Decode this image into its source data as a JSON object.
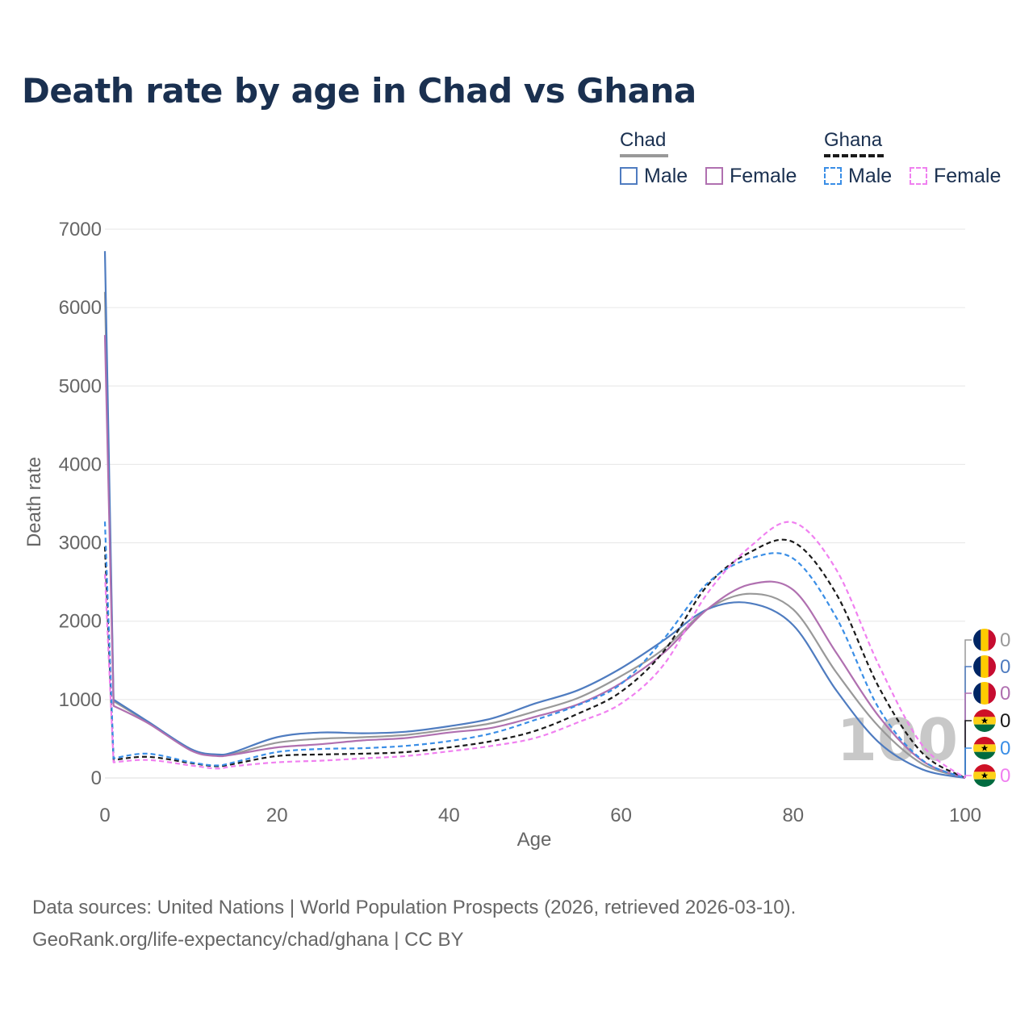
{
  "title": "Death rate by age in Chad vs Ghana",
  "legend": {
    "groups": [
      {
        "title": "Chad",
        "line_style": "solid",
        "line_color": "#999999",
        "items": [
          {
            "label": "Male",
            "color": "#4f7cc0",
            "style": "solid"
          },
          {
            "label": "Female",
            "color": "#b070b0",
            "style": "solid"
          }
        ]
      },
      {
        "title": "Ghana",
        "line_style": "dashed",
        "line_color": "#1a1a1a",
        "items": [
          {
            "label": "Male",
            "color": "#3a8ee6",
            "style": "dashed"
          },
          {
            "label": "Female",
            "color": "#f080f0",
            "style": "dashed"
          }
        ]
      }
    ]
  },
  "chart_data": {
    "type": "line",
    "title": "Death rate by age in Chad vs Ghana",
    "xlabel": "Age",
    "ylabel": "Death rate",
    "xlim": [
      0,
      100
    ],
    "ylim": [
      0,
      7000
    ],
    "xticks": [
      0,
      20,
      40,
      60,
      80,
      100
    ],
    "yticks": [
      0,
      1000,
      2000,
      3000,
      4000,
      5000,
      6000,
      7000
    ],
    "grid": true,
    "watermark": "100",
    "x": [
      0,
      1,
      5,
      10,
      13,
      15,
      20,
      25,
      30,
      35,
      40,
      45,
      50,
      55,
      60,
      65,
      70,
      75,
      80,
      85,
      90,
      95,
      100
    ],
    "series": [
      {
        "name": "Chad total",
        "color": "#999999",
        "dash": "solid",
        "end_value": "0",
        "values": [
          6200,
          980,
          710,
          360,
          290,
          310,
          450,
          500,
          520,
          550,
          620,
          700,
          850,
          1020,
          1300,
          1650,
          2150,
          2350,
          2150,
          1350,
          650,
          180,
          0
        ]
      },
      {
        "name": "Chad Male",
        "color": "#4f7cc0",
        "dash": "solid",
        "end_value": "0",
        "values": [
          6720,
          1000,
          720,
          370,
          300,
          330,
          520,
          580,
          570,
          590,
          660,
          760,
          950,
          1120,
          1400,
          1760,
          2150,
          2230,
          1950,
          1120,
          450,
          110,
          0
        ]
      },
      {
        "name": "Chad Female",
        "color": "#b070b0",
        "dash": "solid",
        "end_value": "0",
        "values": [
          5650,
          920,
          700,
          350,
          280,
          300,
          390,
          430,
          480,
          510,
          580,
          640,
          780,
          940,
          1210,
          1600,
          2150,
          2470,
          2400,
          1600,
          780,
          220,
          0
        ]
      },
      {
        "name": "Ghana total",
        "color": "#1a1a1a",
        "dash": "dashed",
        "end_value": "0",
        "values": [
          2950,
          230,
          270,
          190,
          150,
          180,
          280,
          300,
          310,
          330,
          390,
          470,
          600,
          820,
          1100,
          1620,
          2450,
          2880,
          3010,
          2350,
          1150,
          320,
          0
        ]
      },
      {
        "name": "Ghana Male",
        "color": "#3a8ee6",
        "dash": "dashed",
        "end_value": "0",
        "values": [
          3270,
          250,
          310,
          200,
          160,
          200,
          330,
          370,
          380,
          410,
          470,
          570,
          740,
          930,
          1200,
          1780,
          2480,
          2800,
          2800,
          2050,
          880,
          230,
          0
        ]
      },
      {
        "name": "Ghana Female",
        "color": "#f080f0",
        "dash": "dashed",
        "end_value": "0",
        "values": [
          2600,
          200,
          230,
          160,
          120,
          150,
          200,
          220,
          250,
          280,
          340,
          410,
          510,
          710,
          950,
          1450,
          2350,
          2950,
          3260,
          2660,
          1430,
          420,
          0
        ]
      }
    ],
    "end_markers": [
      {
        "country": "Chad",
        "series": "Chad total",
        "color": "#999999",
        "value": "0"
      },
      {
        "country": "Chad",
        "series": "Chad Male",
        "color": "#4f7cc0",
        "value": "0"
      },
      {
        "country": "Chad",
        "series": "Chad Female",
        "color": "#b070b0",
        "value": "0"
      },
      {
        "country": "Ghana",
        "series": "Ghana total",
        "color": "#1a1a1a",
        "value": "0"
      },
      {
        "country": "Ghana",
        "series": "Ghana Male",
        "color": "#3a8ee6",
        "value": "0"
      },
      {
        "country": "Ghana",
        "series": "Ghana Female",
        "color": "#f080f0",
        "value": "0"
      }
    ]
  },
  "source": {
    "line1": "Data sources: United Nations | World Population Prospects (2026, retrieved 2026-03-10).",
    "line2": "GeoRank.org/life-expectancy/chad/ghana | CC BY"
  }
}
